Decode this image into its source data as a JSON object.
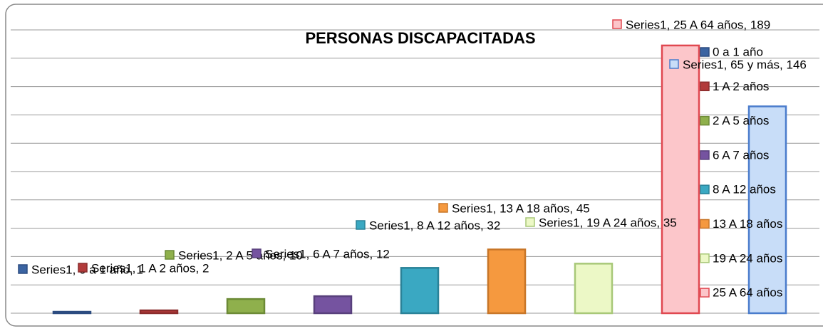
{
  "chart_data": {
    "type": "bar",
    "title": "PERSONAS DISCAPACITADAS",
    "series_name": "Series1",
    "categories": [
      "0 a 1 año",
      "1 A 2 años",
      "2 A 5 años",
      "6 A 7 años",
      "8 A 12 años",
      "13 A 18 años",
      "19 A 24 años",
      "25 A 64 años",
      "65 y más"
    ],
    "values": [
      1,
      2,
      10,
      12,
      32,
      45,
      35,
      189,
      146
    ],
    "value_labels": [
      "Series1, 0 a 1 año, 1",
      "Series1, 1 A 2 años, 2",
      "Series1, 2 A 5 años, 10",
      "Series1, 6 A 7 años, 12",
      "Series1, 8 A 12 años, 32",
      "Series1, 13 A 18 años, 45",
      "Series1, 19 A 24 años, 35",
      "Series1, 25 A 64 años, 189",
      "Series1, 65 y más, 146"
    ],
    "colors": [
      "#3b64a2",
      "#b23b3b",
      "#8fb04c",
      "#7553a0",
      "#3aa8c2",
      "#f5993f",
      "#ecf8c6",
      "#fcc6ca",
      "#c8ddf8"
    ],
    "border_colors": [
      "#2c4c80",
      "#8a2c2c",
      "#6c8a36",
      "#58407c",
      "#2a8298",
      "#c87628",
      "#a8c878",
      "#e04850",
      "#4a7ccc"
    ],
    "ylim": [
      0,
      200
    ],
    "yticks": [
      0,
      20,
      40,
      60,
      80,
      100,
      120,
      140,
      160,
      180,
      200
    ],
    "grid": true,
    "legend": "right"
  }
}
